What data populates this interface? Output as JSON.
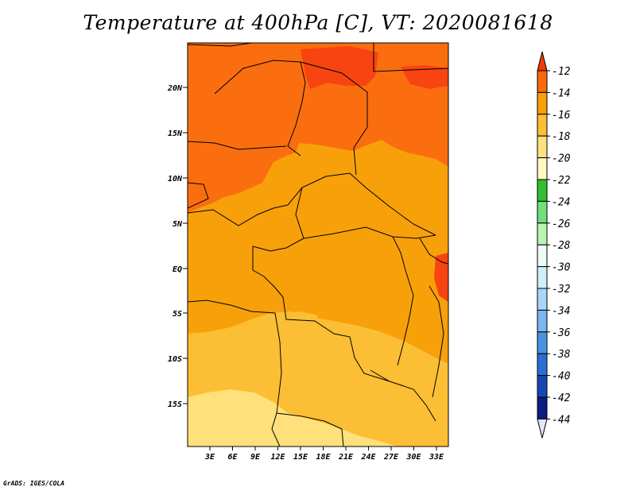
{
  "title": "Temperature at 400hPa [C], VT: 2020081618",
  "credit": "GrADS: IGES/COLA",
  "map": {
    "lat_labels": [
      "20N",
      "15N",
      "10N",
      "5N",
      "EQ",
      "5S",
      "10S",
      "15S"
    ],
    "lon_labels": [
      "3E",
      "6E",
      "9E",
      "12E",
      "15E",
      "18E",
      "21E",
      "24E",
      "27E",
      "30E",
      "33E"
    ],
    "palette": {
      "-12_-14": "#ff4a12",
      "-14_-16": "#f8a00a",
      "-16_-18": "#ffc43c",
      "-18_-20": "#ffe98a",
      "border": "#000000"
    }
  },
  "colorbar": {
    "labels": [
      "-12",
      "-14",
      "-16",
      "-18",
      "-20",
      "-22",
      "-24",
      "-26",
      "-28",
      "-30",
      "-32",
      "-34",
      "-36",
      "-38",
      "-40",
      "-42",
      "-44"
    ],
    "colors": [
      "#f23a0b",
      "#f86a0e",
      "#f8a00a",
      "#fcbe34",
      "#ffe07a",
      "#fff8c0",
      "#2fbf2f",
      "#6fe07a",
      "#b7f5b0",
      "#ecfcf4",
      "#cfeefc",
      "#a9d6f7",
      "#7ab6ef",
      "#4c92e4",
      "#2a6fd6",
      "#1547b5",
      "#0b1d80",
      "#e6e6f7"
    ],
    "top_color": "#f23a0b",
    "bottom_color": "#e6e6f7"
  }
}
